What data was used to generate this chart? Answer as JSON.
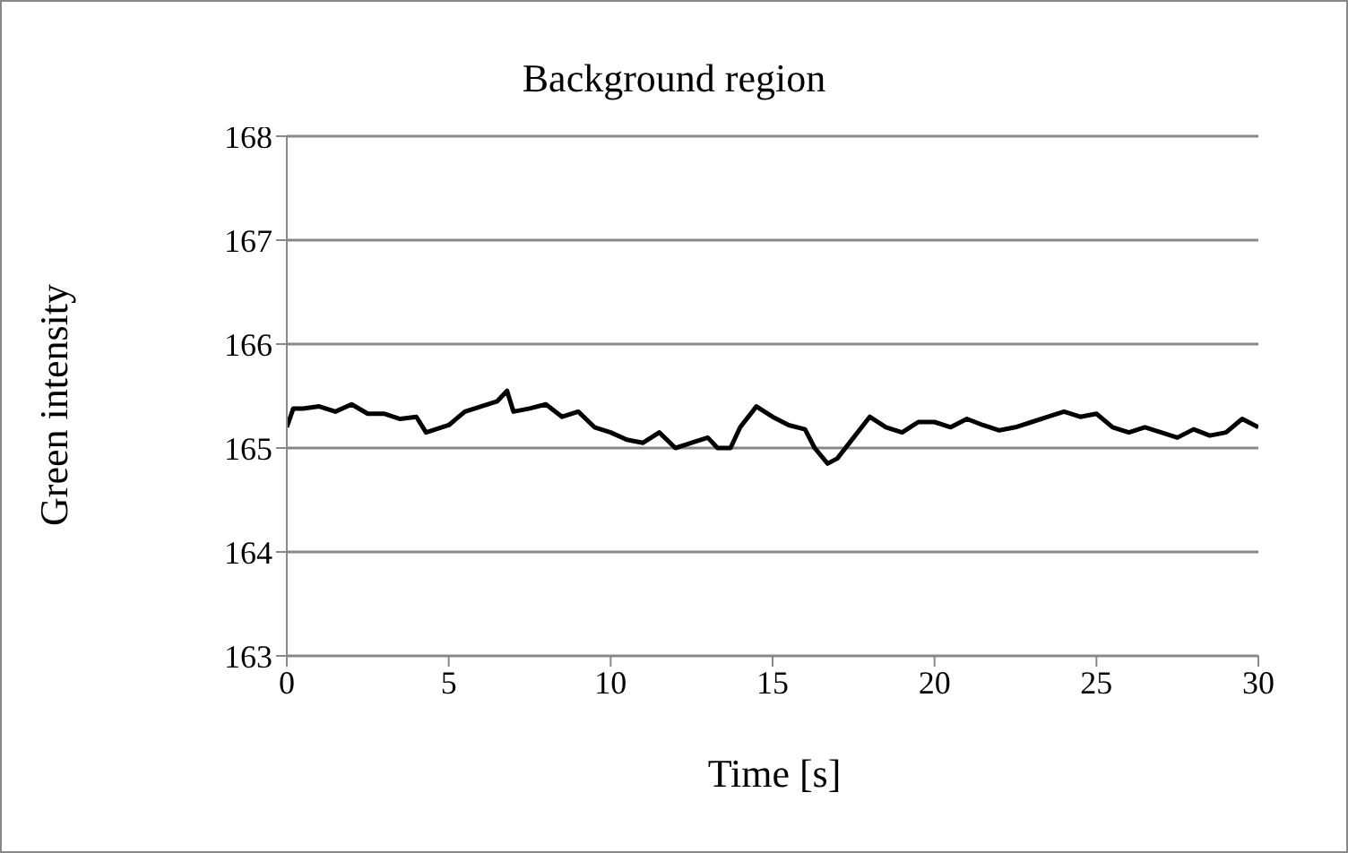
{
  "chart_data": {
    "type": "line",
    "title": "Background region",
    "xlabel": "Time [s]",
    "ylabel": "Green intensity",
    "x": [
      0,
      0.2,
      0.5,
      1,
      1.5,
      2,
      2.5,
      3,
      3.5,
      4,
      4.3,
      5,
      5.5,
      6,
      6.5,
      6.8,
      7,
      7.5,
      8,
      8.5,
      9,
      9.5,
      10,
      10.5,
      11,
      11.5,
      12,
      12.5,
      13,
      13.3,
      13.7,
      14,
      14.5,
      15,
      15.5,
      16,
      16.3,
      16.7,
      17,
      17.5,
      18,
      18.5,
      19,
      19.5,
      20,
      20.5,
      21,
      21.5,
      22,
      22.5,
      23,
      23.5,
      24,
      24.5,
      25,
      25.5,
      26,
      26.5,
      27,
      27.5,
      28,
      28.5,
      29,
      29.5,
      30
    ],
    "series": [
      {
        "color": "#000000",
        "values": [
          165.2,
          165.38,
          165.38,
          165.4,
          165.35,
          165.42,
          165.33,
          165.33,
          165.28,
          165.3,
          165.15,
          165.22,
          165.35,
          165.4,
          165.45,
          165.55,
          165.35,
          165.38,
          165.42,
          165.3,
          165.35,
          165.2,
          165.15,
          165.08,
          165.05,
          165.15,
          165.0,
          165.05,
          165.1,
          165.0,
          165.0,
          165.2,
          165.4,
          165.3,
          165.22,
          165.18,
          165.0,
          164.85,
          164.9,
          165.1,
          165.3,
          165.2,
          165.15,
          165.25,
          165.25,
          165.2,
          165.28,
          165.22,
          165.17,
          165.2,
          165.25,
          165.3,
          165.35,
          165.3,
          165.33,
          165.2,
          165.15,
          165.2,
          165.15,
          165.1,
          165.18,
          165.12,
          165.15,
          165.28,
          165.2
        ]
      }
    ],
    "xlim": [
      0,
      30
    ],
    "xticks": [
      0,
      5,
      10,
      15,
      20,
      25,
      30
    ],
    "ylim": [
      163,
      168
    ],
    "yticks": [
      163,
      164,
      165,
      166,
      167,
      168
    ],
    "grid": "y",
    "legend": false,
    "marker": "none",
    "line_style": "solid"
  }
}
